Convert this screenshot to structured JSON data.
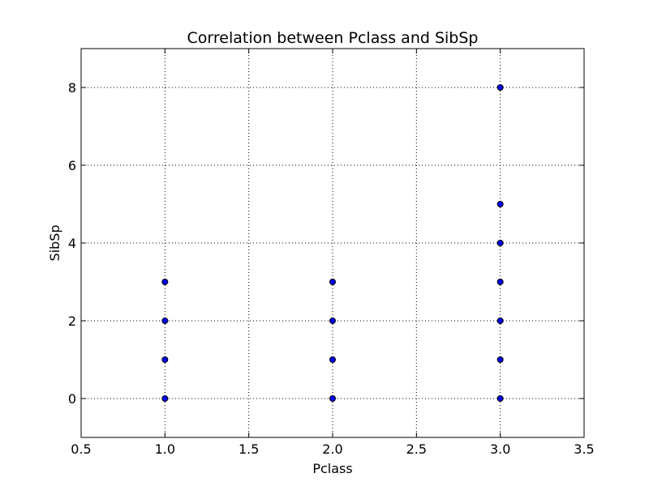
{
  "chart_data": {
    "type": "scatter",
    "title": "Correlation between Pclass and SibSp",
    "xlabel": "Pclass",
    "ylabel": "SibSp",
    "xlim": [
      0.5,
      3.5
    ],
    "ylim": [
      -1,
      9
    ],
    "xticks": [
      0.5,
      1.0,
      1.5,
      2.0,
      2.5,
      3.0,
      3.5
    ],
    "xtick_labels": [
      "0.5",
      "1.0",
      "1.5",
      "2.0",
      "2.5",
      "3.0",
      "3.5"
    ],
    "yticks": [
      0,
      2,
      4,
      6,
      8
    ],
    "ytick_labels": [
      "0",
      "2",
      "4",
      "6",
      "8"
    ],
    "grid": true,
    "marker_color": "#0000ff",
    "edge_color": "#000000",
    "points": [
      {
        "x": 1,
        "y": 0
      },
      {
        "x": 1,
        "y": 1
      },
      {
        "x": 1,
        "y": 2
      },
      {
        "x": 1,
        "y": 3
      },
      {
        "x": 2,
        "y": 0
      },
      {
        "x": 2,
        "y": 1
      },
      {
        "x": 2,
        "y": 2
      },
      {
        "x": 2,
        "y": 3
      },
      {
        "x": 3,
        "y": 0
      },
      {
        "x": 3,
        "y": 1
      },
      {
        "x": 3,
        "y": 2
      },
      {
        "x": 3,
        "y": 3
      },
      {
        "x": 3,
        "y": 4
      },
      {
        "x": 3,
        "y": 5
      },
      {
        "x": 3,
        "y": 8
      }
    ]
  }
}
